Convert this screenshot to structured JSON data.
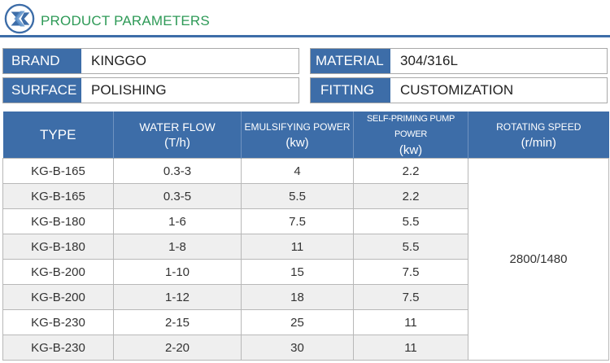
{
  "header": {
    "title": "PRODUCT PARAMETERS",
    "logo_color": "#3d6da8",
    "title_color": "#2e9a57"
  },
  "params": [
    {
      "label": "BRAND",
      "value": "KINGGO"
    },
    {
      "label": "MATERIAL",
      "value": "304/316L"
    },
    {
      "label": "SURFACE",
      "value": "POLISHING"
    },
    {
      "label": "FITTING",
      "value": "CUSTOMIZATION"
    }
  ],
  "table": {
    "columns": [
      {
        "title": "TYPE",
        "unit": ""
      },
      {
        "title": "WATER FLOW",
        "unit": "(T/h)"
      },
      {
        "title": "EMULSIFYING POWER",
        "unit": "(kw)"
      },
      {
        "title": "SELF-PRIMING PUMP POWER",
        "unit": "(kw)"
      },
      {
        "title": "ROTATING SPEED",
        "unit": "(r/min)"
      }
    ],
    "rows": [
      [
        "KG-B-165",
        "0.3-3",
        "4",
        "2.2"
      ],
      [
        "KG-B-165",
        "0.3-5",
        "5.5",
        "2.2"
      ],
      [
        "KG-B-180",
        "1-6",
        "7.5",
        "5.5"
      ],
      [
        "KG-B-180",
        "1-8",
        "11",
        "5.5"
      ],
      [
        "KG-B-200",
        "1-10",
        "15",
        "7.5"
      ],
      [
        "KG-B-200",
        "1-12",
        "18",
        "7.5"
      ],
      [
        "KG-B-230",
        "2-15",
        "25",
        "11"
      ],
      [
        "KG-B-230",
        "2-20",
        "30",
        "11"
      ]
    ],
    "rotating_speed": "2800/1480"
  },
  "colors": {
    "header_blue": "#3d6da8",
    "row_alt": "#efefef"
  }
}
